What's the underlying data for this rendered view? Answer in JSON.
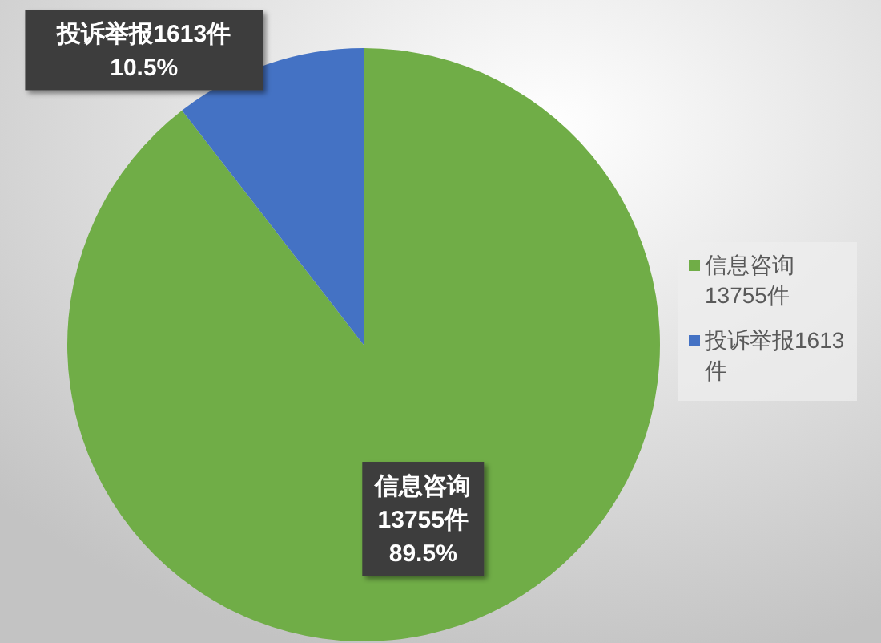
{
  "chart_data": {
    "type": "pie",
    "categories": [
      "信息咨询13755件",
      "投诉举报1613件"
    ],
    "values": [
      89.5,
      10.5
    ],
    "colors": [
      "#70ad47",
      "#4472c4"
    ],
    "value_labels": [
      "89.5%",
      "10.5%"
    ],
    "legend": "right"
  }
}
